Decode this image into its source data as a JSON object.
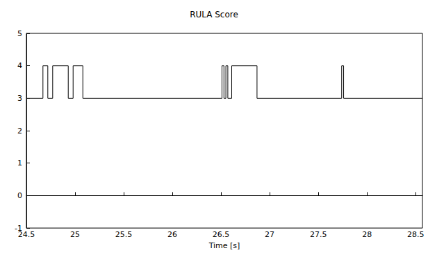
{
  "chart_data": {
    "type": "line",
    "title": "RULA Score",
    "x_label": "Time [s]",
    "line_style": "step",
    "color": "#000000",
    "grid": false,
    "x": [
      24.5,
      24.67,
      24.72,
      24.77,
      24.93,
      24.98,
      25.08,
      26.51,
      26.53,
      26.55,
      26.57,
      26.61,
      26.87,
      27.74,
      27.76,
      28.57
    ],
    "values": [
      3,
      4,
      3,
      4,
      3,
      4,
      3,
      4,
      3,
      4,
      3,
      4,
      3,
      4,
      3,
      3
    ],
    "xlim": [
      24.5,
      28.57
    ],
    "xticks": [
      24.5,
      25,
      25.5,
      26,
      26.5,
      27,
      27.5,
      28,
      28.5
    ],
    "ylim": [
      -1,
      5
    ],
    "yticks": [
      -1,
      0,
      1,
      2,
      3,
      4,
      5
    ]
  }
}
